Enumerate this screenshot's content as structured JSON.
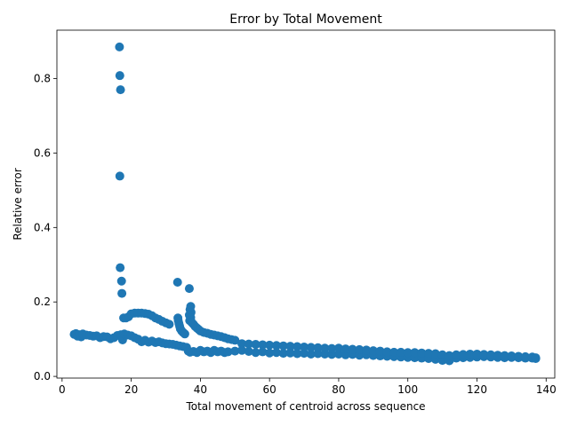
{
  "chart_data": {
    "type": "scatter",
    "title": "Error by Total Movement",
    "xlabel": "Total movement of centroid across sequence",
    "ylabel": "Relative error",
    "xlim": [
      -1.5,
      142.5
    ],
    "ylim": [
      -0.0045,
      0.93
    ],
    "xticks": [
      0,
      20,
      40,
      60,
      80,
      100,
      120,
      140
    ],
    "yticks": [
      0.0,
      0.2,
      0.4,
      0.6,
      0.8
    ],
    "ytick_labels": [
      "0.0",
      "0.2",
      "0.4",
      "0.6",
      "0.8"
    ],
    "grid": false,
    "marker_color": "#1f77b4",
    "series": [
      {
        "points": [
          [
            16.6,
            0.885
          ],
          [
            16.7,
            0.808
          ],
          [
            16.9,
            0.77
          ],
          [
            16.7,
            0.538
          ],
          [
            16.8,
            0.292
          ],
          [
            17.2,
            0.256
          ],
          [
            17.3,
            0.223
          ],
          [
            17.8,
            0.157
          ],
          [
            18.5,
            0.157
          ],
          [
            19.2,
            0.16
          ],
          [
            20.0,
            0.168
          ],
          [
            21.0,
            0.17
          ],
          [
            22.0,
            0.17
          ],
          [
            23.0,
            0.17
          ],
          [
            24.0,
            0.169
          ],
          [
            25.0,
            0.167
          ],
          [
            26.0,
            0.163
          ],
          [
            27.0,
            0.157
          ],
          [
            28.0,
            0.153
          ],
          [
            29.0,
            0.148
          ],
          [
            30.0,
            0.144
          ],
          [
            31.0,
            0.14
          ],
          [
            33.4,
            0.253
          ],
          [
            33.5,
            0.157
          ],
          [
            33.6,
            0.15
          ],
          [
            33.8,
            0.142
          ],
          [
            34.0,
            0.135
          ],
          [
            34.2,
            0.128
          ],
          [
            34.6,
            0.122
          ],
          [
            35.0,
            0.118
          ],
          [
            35.5,
            0.114
          ],
          [
            36.8,
            0.236
          ],
          [
            37.2,
            0.188
          ],
          [
            37.0,
            0.18
          ],
          [
            37.3,
            0.172
          ],
          [
            36.8,
            0.165
          ],
          [
            37.2,
            0.158
          ],
          [
            36.9,
            0.15
          ],
          [
            37.5,
            0.145
          ],
          [
            38.0,
            0.14
          ],
          [
            38.5,
            0.134
          ],
          [
            39.0,
            0.13
          ],
          [
            39.5,
            0.126
          ],
          [
            40.0,
            0.122
          ],
          [
            41.0,
            0.118
          ],
          [
            42.0,
            0.116
          ],
          [
            43.0,
            0.113
          ],
          [
            44.0,
            0.111
          ],
          [
            45.0,
            0.109
          ],
          [
            46.0,
            0.107
          ],
          [
            47.0,
            0.104
          ],
          [
            48.0,
            0.101
          ],
          [
            49.0,
            0.099
          ],
          [
            50.0,
            0.097
          ],
          [
            3.5,
            0.113
          ],
          [
            4.0,
            0.115
          ],
          [
            4.5,
            0.108
          ],
          [
            5.0,
            0.112
          ],
          [
            5.5,
            0.106
          ],
          [
            6.0,
            0.114
          ],
          [
            7.0,
            0.111
          ],
          [
            8.0,
            0.11
          ],
          [
            9.0,
            0.108
          ],
          [
            10.0,
            0.109
          ],
          [
            11.0,
            0.104
          ],
          [
            12.0,
            0.107
          ],
          [
            13.0,
            0.106
          ],
          [
            14.0,
            0.101
          ],
          [
            15.0,
            0.104
          ],
          [
            16.0,
            0.11
          ],
          [
            17.0,
            0.112
          ],
          [
            17.5,
            0.098
          ],
          [
            18.0,
            0.114
          ],
          [
            19.0,
            0.111
          ],
          [
            20.0,
            0.109
          ],
          [
            21.0,
            0.104
          ],
          [
            22.0,
            0.1
          ],
          [
            23.0,
            0.093
          ],
          [
            24.0,
            0.097
          ],
          [
            25.0,
            0.092
          ],
          [
            26.0,
            0.095
          ],
          [
            27.0,
            0.091
          ],
          [
            28.0,
            0.093
          ],
          [
            29.0,
            0.09
          ],
          [
            30.0,
            0.088
          ],
          [
            31.0,
            0.087
          ],
          [
            32.0,
            0.086
          ],
          [
            33.0,
            0.084
          ],
          [
            34.0,
            0.082
          ],
          [
            35.0,
            0.08
          ],
          [
            36.0,
            0.078
          ],
          [
            36.5,
            0.068
          ],
          [
            37.0,
            0.065
          ],
          [
            38.0,
            0.067
          ],
          [
            39.0,
            0.064
          ],
          [
            40.0,
            0.07
          ],
          [
            41.0,
            0.066
          ],
          [
            42.0,
            0.068
          ],
          [
            43.0,
            0.064
          ],
          [
            44.0,
            0.07
          ],
          [
            45.0,
            0.066
          ],
          [
            46.0,
            0.068
          ],
          [
            47.0,
            0.064
          ],
          [
            48.0,
            0.066
          ],
          [
            50.0,
            0.068
          ],
          [
            52.0,
            0.07
          ],
          [
            54.0,
            0.067
          ],
          [
            56.0,
            0.064
          ],
          [
            58.0,
            0.066
          ],
          [
            60.0,
            0.063
          ],
          [
            62.0,
            0.064
          ],
          [
            64.0,
            0.062
          ],
          [
            66.0,
            0.063
          ],
          [
            68.0,
            0.061
          ],
          [
            70.0,
            0.062
          ],
          [
            72.0,
            0.06
          ],
          [
            74.0,
            0.061
          ],
          [
            76.0,
            0.06
          ],
          [
            78.0,
            0.059
          ],
          [
            80.0,
            0.06
          ],
          [
            82.0,
            0.058
          ],
          [
            84.0,
            0.059
          ],
          [
            86.0,
            0.057
          ],
          [
            88.0,
            0.058
          ],
          [
            90.0,
            0.056
          ],
          [
            92.0,
            0.055
          ],
          [
            94.0,
            0.054
          ],
          [
            96.0,
            0.053
          ],
          [
            98.0,
            0.052
          ],
          [
            100.0,
            0.051
          ],
          [
            102.0,
            0.05
          ],
          [
            104.0,
            0.049
          ],
          [
            106.0,
            0.048
          ],
          [
            108.0,
            0.046
          ],
          [
            110.0,
            0.043
          ],
          [
            112.0,
            0.042
          ],
          [
            114.0,
            0.049
          ],
          [
            116.0,
            0.05
          ],
          [
            118.0,
            0.051
          ],
          [
            120.0,
            0.052
          ],
          [
            122.0,
            0.053
          ],
          [
            124.0,
            0.052
          ],
          [
            126.0,
            0.051
          ],
          [
            128.0,
            0.05
          ],
          [
            130.0,
            0.051
          ],
          [
            132.0,
            0.05
          ],
          [
            134.0,
            0.049
          ],
          [
            136.0,
            0.049
          ],
          [
            137.0,
            0.048
          ],
          [
            52.0,
            0.088
          ],
          [
            54.0,
            0.087
          ],
          [
            56.0,
            0.086
          ],
          [
            58.0,
            0.085
          ],
          [
            60.0,
            0.084
          ],
          [
            62.0,
            0.083
          ],
          [
            64.0,
            0.082
          ],
          [
            66.0,
            0.081
          ],
          [
            68.0,
            0.08
          ],
          [
            70.0,
            0.079
          ],
          [
            72.0,
            0.078
          ],
          [
            74.0,
            0.077
          ],
          [
            76.0,
            0.076
          ],
          [
            78.0,
            0.075
          ],
          [
            80.0,
            0.076
          ],
          [
            82.0,
            0.074
          ],
          [
            84.0,
            0.073
          ],
          [
            86.0,
            0.072
          ],
          [
            88.0,
            0.071
          ],
          [
            90.0,
            0.069
          ],
          [
            92.0,
            0.068
          ],
          [
            94.0,
            0.066
          ],
          [
            96.0,
            0.065
          ],
          [
            98.0,
            0.065
          ],
          [
            100.0,
            0.064
          ],
          [
            102.0,
            0.064
          ],
          [
            104.0,
            0.063
          ],
          [
            106.0,
            0.062
          ],
          [
            108.0,
            0.061
          ],
          [
            110.0,
            0.058
          ],
          [
            112.0,
            0.056
          ],
          [
            114.0,
            0.058
          ],
          [
            116.0,
            0.059
          ],
          [
            118.0,
            0.06
          ],
          [
            120.0,
            0.06
          ],
          [
            122.0,
            0.059
          ],
          [
            124.0,
            0.058
          ],
          [
            126.0,
            0.057
          ],
          [
            128.0,
            0.056
          ],
          [
            130.0,
            0.055
          ],
          [
            132.0,
            0.054
          ],
          [
            134.0,
            0.053
          ],
          [
            136.0,
            0.052
          ],
          [
            137.0,
            0.05
          ]
        ]
      }
    ]
  }
}
